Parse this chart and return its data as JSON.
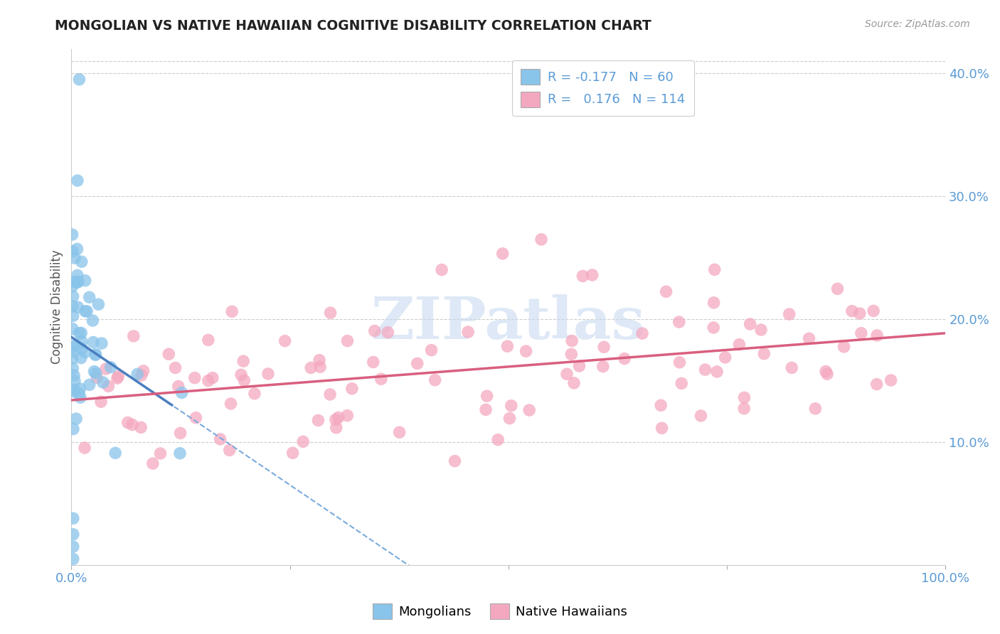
{
  "title": "MONGOLIAN VS NATIVE HAWAIIAN COGNITIVE DISABILITY CORRELATION CHART",
  "source": "Source: ZipAtlas.com",
  "ylabel": "Cognitive Disability",
  "xlim": [
    0,
    1.0
  ],
  "ylim": [
    0,
    0.42
  ],
  "legend_r_mongolian": "-0.177",
  "legend_n_mongolian": "60",
  "legend_r_hawaiian": "0.176",
  "legend_n_hawaiian": "114",
  "mongolian_color": "#89c4ea",
  "hawaiian_color": "#f4a8c0",
  "trend_mongolian_color": "#4a7fc1",
  "trend_hawaiian_color": "#d95f7f",
  "trend_dashed_color": "#7aaadd",
  "background_color": "#ffffff",
  "grid_color": "#cccccc",
  "title_color": "#222222",
  "axis_tick_color": "#5b9bd5",
  "watermark": "ZIPatlas",
  "watermark_color": "#c8daf0",
  "source_color": "#999999"
}
